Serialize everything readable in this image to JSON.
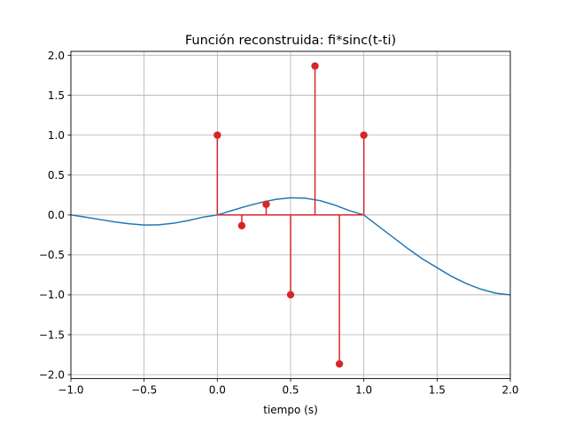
{
  "chart_data": {
    "type": "line",
    "title": "Función reconstruida: fi*sinc(t-ti)",
    "xlabel": "tiempo (s)",
    "ylabel": "",
    "xlim": [
      -1.0,
      2.0
    ],
    "ylim": [
      -2.05,
      2.05
    ],
    "grid": true,
    "x_ticks": [
      -1.0,
      -0.5,
      0.0,
      0.5,
      1.0,
      1.5,
      2.0
    ],
    "x_tick_labels": [
      "−1.0",
      "−0.5",
      "0.0",
      "0.5",
      "1.0",
      "1.5",
      "2.0"
    ],
    "y_ticks": [
      -2.0,
      -1.5,
      -1.0,
      -0.5,
      0.0,
      0.5,
      1.0,
      1.5,
      2.0
    ],
    "y_tick_labels": [
      "−2.0",
      "−1.5",
      "−1.0",
      "−0.5",
      "0.0",
      "0.5",
      "1.0",
      "1.5",
      "2.0"
    ],
    "series": [
      {
        "kind": "line",
        "color": "#1f77b4",
        "x": [
          -1.0,
          -0.9,
          -0.8,
          -0.7,
          -0.6,
          -0.5,
          -0.4,
          -0.3,
          -0.2,
          -0.1,
          0.0,
          0.1,
          0.2,
          0.3,
          0.4,
          0.5,
          0.6,
          0.7,
          0.8,
          0.9,
          1.0,
          1.1,
          1.2,
          1.3,
          1.4,
          1.5,
          1.6,
          1.7,
          1.8,
          1.9,
          2.0
        ],
        "y": [
          0.0,
          -0.027,
          -0.057,
          -0.087,
          -0.11,
          -0.125,
          -0.123,
          -0.104,
          -0.07,
          -0.028,
          0.0,
          0.056,
          0.111,
          0.158,
          0.196,
          0.215,
          0.21,
          0.18,
          0.125,
          0.055,
          0.0,
          -0.14,
          -0.28,
          -0.42,
          -0.55,
          -0.66,
          -0.77,
          -0.86,
          -0.93,
          -0.98,
          -1.0
        ]
      },
      {
        "kind": "stem",
        "color": "#d62728",
        "x": [
          0.0,
          0.1667,
          0.3333,
          0.5,
          0.6667,
          0.8333,
          1.0
        ],
        "y": [
          1.0,
          -0.134,
          0.134,
          -1.0,
          1.866,
          -1.866,
          1.0
        ],
        "baseline_x": [
          0.0,
          1.0
        ]
      }
    ]
  }
}
